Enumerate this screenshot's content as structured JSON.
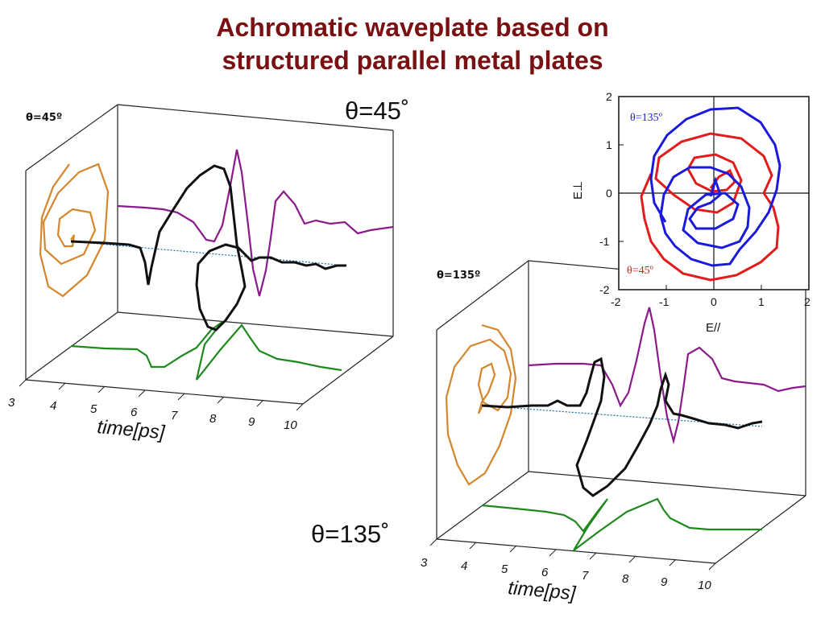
{
  "title": {
    "line1": "Achromatic waveplate based on",
    "line2": "structured parallel metal plates"
  },
  "labels": {
    "theta45_big": "θ=45˚",
    "theta135_big": "θ=135˚",
    "plot1_corner": "θ=45º",
    "plot2_corner": "θ=135º"
  },
  "plot3d": {
    "time_ticks": [
      "3",
      "4",
      "5",
      "6",
      "7",
      "8",
      "9",
      "10"
    ],
    "time_axis_title": "time[ps]"
  },
  "polar": {
    "x_ticks": [
      "-2",
      "-1",
      "0",
      "1",
      "2"
    ],
    "y_ticks": [
      "2",
      "1",
      "0",
      "-1",
      "-2"
    ],
    "x_label": "E//",
    "y_label": "E⊥",
    "series_blue_label": "θ=135º",
    "series_red_label": "θ=45º",
    "colors": {
      "blue": "#1a1adc",
      "red": "#e21b1b"
    }
  },
  "colors": {
    "title": "#7a1012",
    "orange": "#d4862a",
    "purple": "#8b1a8b",
    "green": "#1e8a1e",
    "black": "#111111",
    "dotted": "#1a6fa8"
  }
}
